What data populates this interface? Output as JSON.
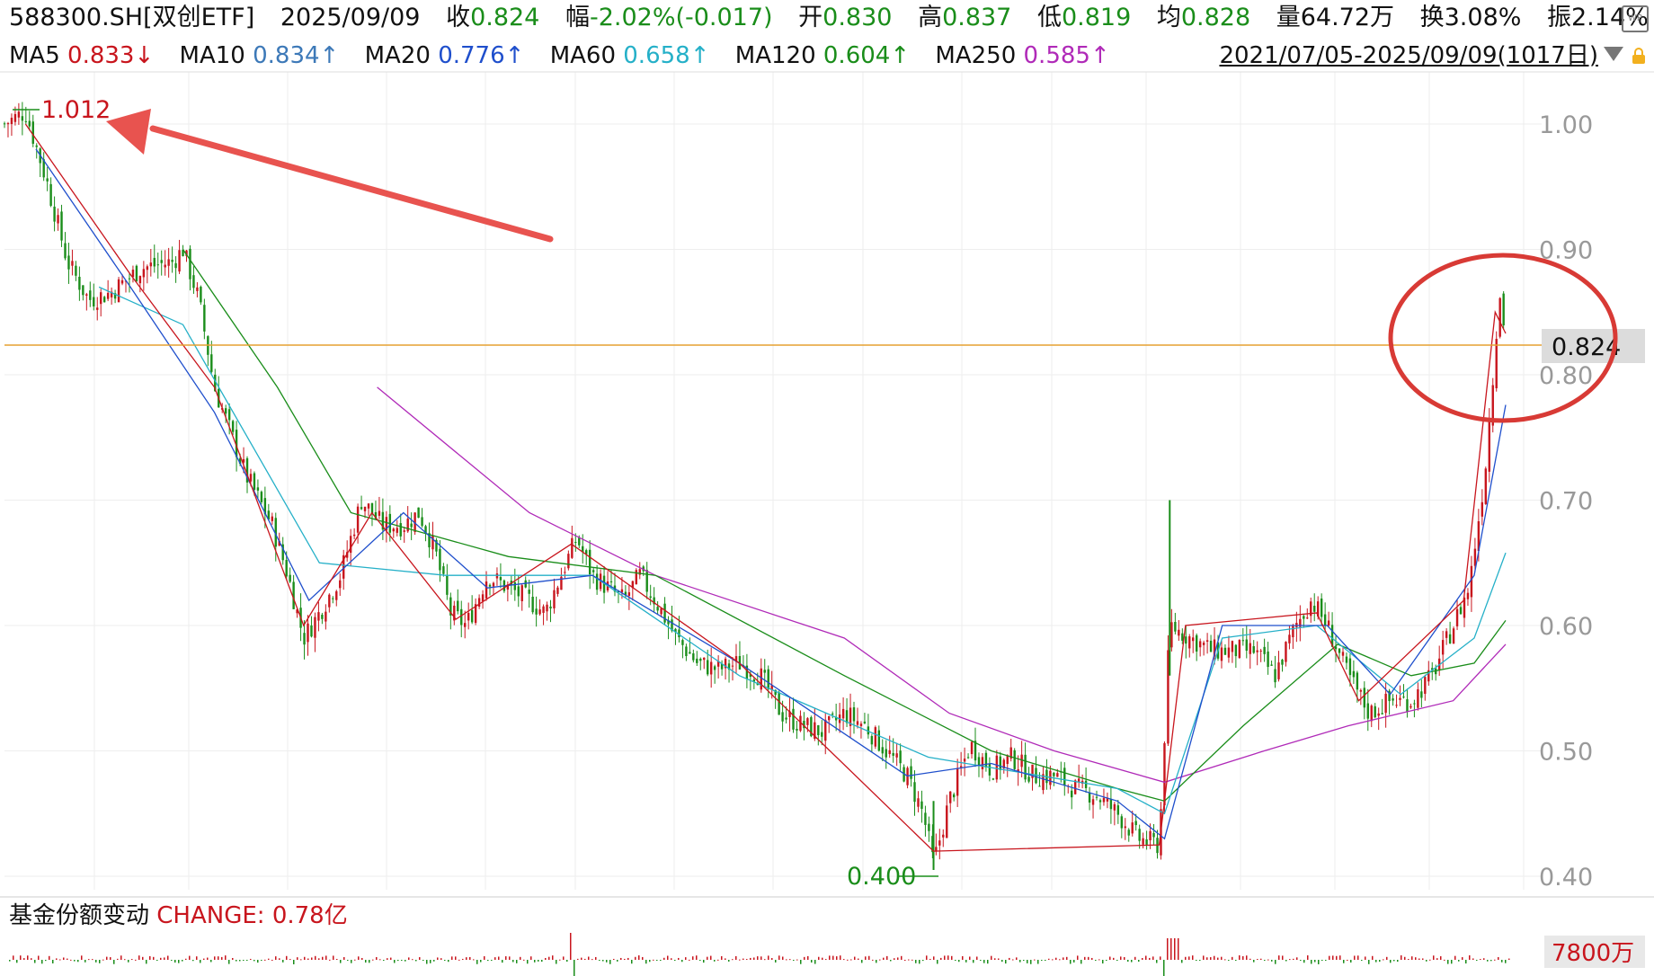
{
  "header": {
    "code": "588300.SH[双创ETF]",
    "date": "2025/09/09",
    "close_label": "收",
    "close_value": "0.824",
    "change_label": "幅",
    "change_value": "-2.02%(-0.017)",
    "open_label": "开",
    "open_value": "0.830",
    "high_label": "高",
    "high_value": "0.837",
    "low_label": "低",
    "low_value": "0.819",
    "avg_label": "均",
    "avg_value": "0.828",
    "volume_label": "量",
    "volume_value": "64.72万",
    "turnover_label": "换",
    "turnover_value": "3.08%",
    "amplitude_label": "振",
    "amplitude_value": "2.14%",
    "wp_icon": "WP"
  },
  "ma_bar": {
    "items": [
      {
        "label": "MA5",
        "value": "0.833",
        "arrow": "↓",
        "color": "#c8151d"
      },
      {
        "label": "MA10",
        "value": "0.834",
        "arrow": "↑",
        "color": "#3d79b8"
      },
      {
        "label": "MA20",
        "value": "0.776",
        "arrow": "↑",
        "color": "#1f4fcc"
      },
      {
        "label": "MA60",
        "value": "0.658",
        "arrow": "↑",
        "color": "#25b0c8"
      },
      {
        "label": "MA120",
        "value": "0.604",
        "arrow": "↑",
        "color": "#1a8d1a"
      },
      {
        "label": "MA250",
        "value": "0.585",
        "arrow": "↑",
        "color": "#b02ab8"
      }
    ],
    "range": "2021/07/05-2025/09/09(1017日)",
    "lock_icon": "lock-icon"
  },
  "fund_panel": {
    "label": "基金份额变动",
    "change_label": "CHANGE: 0.78亿",
    "badge": "7800万"
  },
  "chart_data": {
    "type": "line",
    "y_ticks": [
      "1.00",
      "0.90",
      "0.80",
      "0.70",
      "0.60",
      "0.50",
      "0.40"
    ],
    "ylim": [
      0.4,
      1.0
    ],
    "current_price_label": "0.824",
    "max_label": "1.012",
    "min_label": "0.400",
    "grid": true,
    "series": [
      {
        "name": "收",
        "color": "#c8151d",
        "points": [
          [
            0,
            1.0
          ],
          [
            20,
            1.01
          ],
          [
            40,
            0.955
          ],
          [
            60,
            0.89
          ],
          [
            80,
            0.86
          ],
          [
            100,
            0.865
          ],
          [
            130,
            0.885
          ],
          [
            160,
            0.89
          ],
          [
            170,
            0.9
          ],
          [
            185,
            0.86
          ],
          [
            200,
            0.79
          ],
          [
            230,
            0.72
          ],
          [
            255,
            0.68
          ],
          [
            270,
            0.64
          ],
          [
            285,
            0.59
          ],
          [
            300,
            0.61
          ],
          [
            320,
            0.64
          ],
          [
            340,
            0.7
          ],
          [
            360,
            0.68
          ],
          [
            380,
            0.68
          ],
          [
            395,
            0.69
          ],
          [
            410,
            0.66
          ],
          [
            425,
            0.61
          ],
          [
            440,
            0.6
          ],
          [
            460,
            0.64
          ],
          [
            480,
            0.63
          ],
          [
            500,
            0.62
          ],
          [
            515,
            0.61
          ],
          [
            530,
            0.64
          ],
          [
            545,
            0.67
          ],
          [
            560,
            0.64
          ],
          [
            575,
            0.63
          ],
          [
            590,
            0.62
          ],
          [
            605,
            0.64
          ],
          [
            620,
            0.62
          ],
          [
            640,
            0.59
          ],
          [
            660,
            0.57
          ],
          [
            680,
            0.565
          ],
          [
            700,
            0.57
          ],
          [
            720,
            0.56
          ],
          [
            740,
            0.53
          ],
          [
            760,
            0.52
          ],
          [
            780,
            0.515
          ],
          [
            800,
            0.53
          ],
          [
            820,
            0.52
          ],
          [
            840,
            0.5
          ],
          [
            860,
            0.48
          ],
          [
            875,
            0.45
          ],
          [
            885,
            0.41
          ],
          [
            900,
            0.46
          ],
          [
            920,
            0.505
          ],
          [
            940,
            0.485
          ],
          [
            960,
            0.495
          ],
          [
            980,
            0.48
          ],
          [
            1000,
            0.48
          ],
          [
            1020,
            0.47
          ],
          [
            1040,
            0.465
          ],
          [
            1060,
            0.45
          ],
          [
            1080,
            0.43
          ],
          [
            1100,
            0.425
          ],
          [
            1110,
            0.6
          ],
          [
            1130,
            0.59
          ],
          [
            1150,
            0.58
          ],
          [
            1170,
            0.58
          ],
          [
            1190,
            0.58
          ],
          [
            1210,
            0.56
          ],
          [
            1230,
            0.6
          ],
          [
            1245,
            0.62
          ],
          [
            1260,
            0.6
          ],
          [
            1280,
            0.56
          ],
          [
            1300,
            0.53
          ],
          [
            1320,
            0.54
          ],
          [
            1340,
            0.54
          ],
          [
            1360,
            0.56
          ],
          [
            1380,
            0.6
          ],
          [
            1395,
            0.63
          ],
          [
            1410,
            0.72
          ],
          [
            1418,
            0.8
          ],
          [
            1424,
            0.87
          ],
          [
            1430,
            0.824
          ]
        ]
      },
      {
        "name": "MA250",
        "color": "#b02ab8",
        "points": [
          [
            355,
            0.79
          ],
          [
            500,
            0.69
          ],
          [
            620,
            0.64
          ],
          [
            800,
            0.59
          ],
          [
            900,
            0.53
          ],
          [
            1000,
            0.5
          ],
          [
            1105,
            0.475
          ],
          [
            1200,
            0.5
          ],
          [
            1280,
            0.52
          ],
          [
            1380,
            0.54
          ],
          [
            1430,
            0.585
          ]
        ]
      },
      {
        "name": "MA120",
        "color": "#1a8d1a",
        "points": [
          [
            170,
            0.9
          ],
          [
            260,
            0.79
          ],
          [
            330,
            0.69
          ],
          [
            480,
            0.655
          ],
          [
            620,
            0.64
          ],
          [
            800,
            0.56
          ],
          [
            940,
            0.5
          ],
          [
            1060,
            0.47
          ],
          [
            1105,
            0.46
          ],
          [
            1180,
            0.52
          ],
          [
            1270,
            0.585
          ],
          [
            1340,
            0.56
          ],
          [
            1400,
            0.57
          ],
          [
            1430,
            0.604
          ]
        ]
      },
      {
        "name": "MA60",
        "color": "#25b0c8",
        "points": [
          [
            90,
            0.87
          ],
          [
            170,
            0.84
          ],
          [
            300,
            0.65
          ],
          [
            420,
            0.64
          ],
          [
            560,
            0.64
          ],
          [
            700,
            0.56
          ],
          [
            880,
            0.495
          ],
          [
            1060,
            0.47
          ],
          [
            1105,
            0.45
          ],
          [
            1160,
            0.59
          ],
          [
            1250,
            0.6
          ],
          [
            1330,
            0.545
          ],
          [
            1400,
            0.59
          ],
          [
            1430,
            0.658
          ]
        ]
      },
      {
        "name": "MA20",
        "color": "#1f4fcc",
        "points": [
          [
            30,
            0.98
          ],
          [
            120,
            0.87
          ],
          [
            200,
            0.77
          ],
          [
            290,
            0.62
          ],
          [
            380,
            0.69
          ],
          [
            460,
            0.63
          ],
          [
            560,
            0.64
          ],
          [
            700,
            0.57
          ],
          [
            860,
            0.48
          ],
          [
            940,
            0.49
          ],
          [
            1060,
            0.46
          ],
          [
            1105,
            0.43
          ],
          [
            1160,
            0.6
          ],
          [
            1260,
            0.6
          ],
          [
            1320,
            0.545
          ],
          [
            1400,
            0.64
          ],
          [
            1430,
            0.776
          ]
        ]
      },
      {
        "name": "MA5",
        "color": "#c8151d",
        "points": [
          [
            20,
            1.0
          ],
          [
            120,
            0.88
          ],
          [
            200,
            0.79
          ],
          [
            285,
            0.6
          ],
          [
            350,
            0.69
          ],
          [
            430,
            0.605
          ],
          [
            540,
            0.665
          ],
          [
            700,
            0.57
          ],
          [
            885,
            0.42
          ],
          [
            1100,
            0.425
          ],
          [
            1125,
            0.6
          ],
          [
            1250,
            0.61
          ],
          [
            1290,
            0.54
          ],
          [
            1390,
            0.62
          ],
          [
            1420,
            0.85
          ],
          [
            1430,
            0.833
          ]
        ]
      }
    ],
    "fund_share": {
      "label": "CHANGE",
      "value": "0.78亿"
    }
  }
}
